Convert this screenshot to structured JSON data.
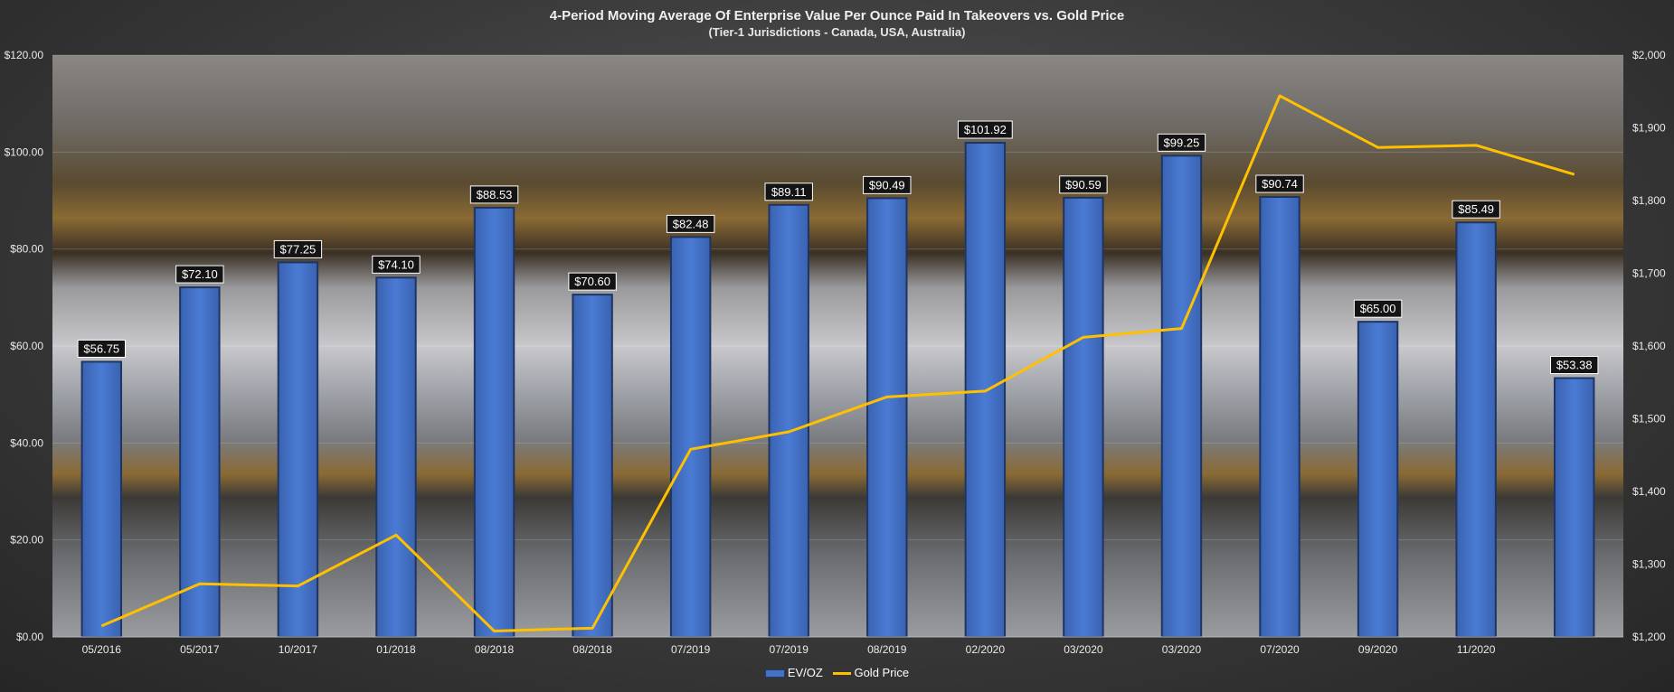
{
  "chart_data": {
    "type": "bar",
    "title": "4-Period Moving Average Of Enterprise Value Per Ounce Paid In Takeovers vs. Gold Price",
    "subtitle": "(Tier-1 Jurisdictions - Canada, USA, Australia)",
    "categories": [
      "05/2016",
      "05/2017",
      "10/2017",
      "01/2018",
      "08/2018",
      "08/2018",
      "07/2019",
      "07/2019",
      "08/2019",
      "02/2020",
      "03/2020",
      "03/2020",
      "07/2020",
      "09/2020",
      "11/2020",
      ""
    ],
    "series": [
      {
        "name": "EV/OZ",
        "type": "bar",
        "axis": "left",
        "values": [
          56.75,
          72.1,
          77.25,
          74.1,
          88.53,
          70.6,
          82.48,
          89.11,
          90.49,
          101.92,
          90.59,
          99.25,
          90.74,
          65.0,
          85.49,
          53.38
        ],
        "labels": [
          "$56.75",
          "$72.10",
          "$77.25",
          "$74.10",
          "$88.53",
          "$70.60",
          "$82.48",
          "$89.11",
          "$90.49",
          "$101.92",
          "$90.59",
          "$99.25",
          "$90.74",
          "$65.00",
          "$85.49",
          "$53.38"
        ]
      },
      {
        "name": "Gold Price",
        "type": "line",
        "axis": "right",
        "values": [
          1215,
          1273,
          1270,
          1340,
          1208,
          1212,
          1458,
          1482,
          1530,
          1538,
          1612,
          1624,
          1944,
          1873,
          1876,
          1836
        ]
      }
    ],
    "y_left": {
      "min": 0,
      "max": 120,
      "step": 20,
      "tick_labels": [
        "$0.00",
        "$20.00",
        "$40.00",
        "$60.00",
        "$80.00",
        "$100.00",
        "$120.00"
      ]
    },
    "y_right": {
      "min": 1200,
      "max": 2000,
      "step": 100,
      "tick_labels": [
        "$1,200",
        "$1,300",
        "$1,400",
        "$1,500",
        "$1,600",
        "$1,700",
        "$1,800",
        "$1,900",
        "$2,000"
      ]
    },
    "legend": {
      "position": "bottom",
      "entries": [
        "EV/OZ",
        "Gold Price"
      ]
    },
    "grid": true,
    "colors": {
      "bar": "#4472C4",
      "line": "#FFC000"
    }
  }
}
